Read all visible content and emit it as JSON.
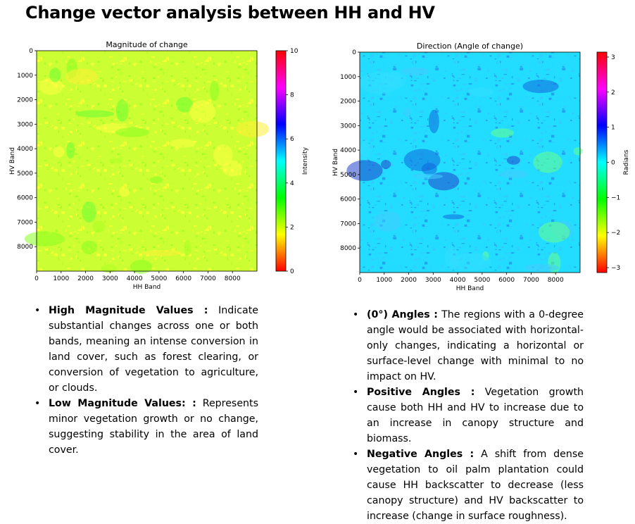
{
  "slide": {
    "title": "Change vector analysis between HH and HV"
  },
  "chart_data": [
    {
      "type": "heatmap",
      "title": "Magnitude of change",
      "xlabel": "HH Band",
      "ylabel": "HV Band",
      "xlim": [
        0,
        9000
      ],
      "ylim": [
        9000,
        0
      ],
      "x_ticks": [
        0,
        1000,
        2000,
        3000,
        4000,
        5000,
        6000,
        7000,
        8000
      ],
      "y_ticks": [
        0,
        1000,
        2000,
        3000,
        4000,
        5000,
        6000,
        7000,
        8000
      ],
      "colorbar": {
        "label": "Intensity",
        "range": [
          0,
          10
        ],
        "ticks": [
          0,
          2,
          4,
          6,
          8,
          10
        ],
        "colormap": [
          "#ff0000",
          "#ffff00",
          "#00ff00",
          "#00ffff",
          "#0000ff",
          "#ff00ff",
          "#ff0000"
        ]
      },
      "dominant_colors": [
        "#ccff33",
        "#99ff22",
        "#ffff33"
      ],
      "dominant_range": [
        2,
        4
      ],
      "grid": false
    },
    {
      "type": "heatmap",
      "title": "Direction (Angle of change)",
      "xlabel": "HH Band",
      "ylabel": "HV Band",
      "xlim": [
        0,
        9000
      ],
      "ylim": [
        9000,
        0
      ],
      "x_ticks": [
        0,
        1000,
        2000,
        3000,
        4000,
        5000,
        6000,
        7000,
        8000
      ],
      "y_ticks": [
        0,
        1000,
        2000,
        3000,
        4000,
        5000,
        6000,
        7000,
        8000
      ],
      "colorbar": {
        "label": "Radians",
        "range": [
          -3.14,
          3.14
        ],
        "ticks": [
          -3,
          -2,
          -1,
          0,
          1,
          2,
          3
        ],
        "tick_labels": [
          "−3",
          "−2",
          "−1",
          "0",
          "1",
          "2",
          "3"
        ],
        "colormap": [
          "#ff0000",
          "#ffff00",
          "#00ff00",
          "#00ffff",
          "#0000ff",
          "#ff00ff",
          "#ff0000"
        ]
      },
      "dominant_colors": [
        "#22ddff",
        "#33ccff",
        "#2299ee"
      ],
      "dominant_range": [
        -0.5,
        0.8
      ],
      "grid": false
    }
  ],
  "left_bullets": [
    {
      "term": "High Magnitude Values :",
      "text": " Indicate substantial changes across one or both bands, meaning an intense conversion in land cover, such as forest clearing, or conversion of vegetation to agriculture, or clouds."
    },
    {
      "term": "Low Magnitude Values: :",
      "text": " Represents minor vegetation growth  or no change, suggesting stability in the area of land cover."
    }
  ],
  "right_bullets": [
    {
      "term": "(0°) Angles :",
      "text": " The regions with a 0-degree angle would be associated with horizontal-only changes, indicating a horizontal or surface-level change with minimal to no impact on HV."
    },
    {
      "term": "Positive Angles :",
      "text": " Vegetation growth cause both HH and HV to increase due to an increase in canopy structure and biomass."
    },
    {
      "term": "Negative Angles :",
      "text": " A shift from dense vegetation to oil palm plantation could cause HH backscatter to decrease (less canopy structure) and HV backscatter to increase (change in surface roughness)."
    }
  ]
}
